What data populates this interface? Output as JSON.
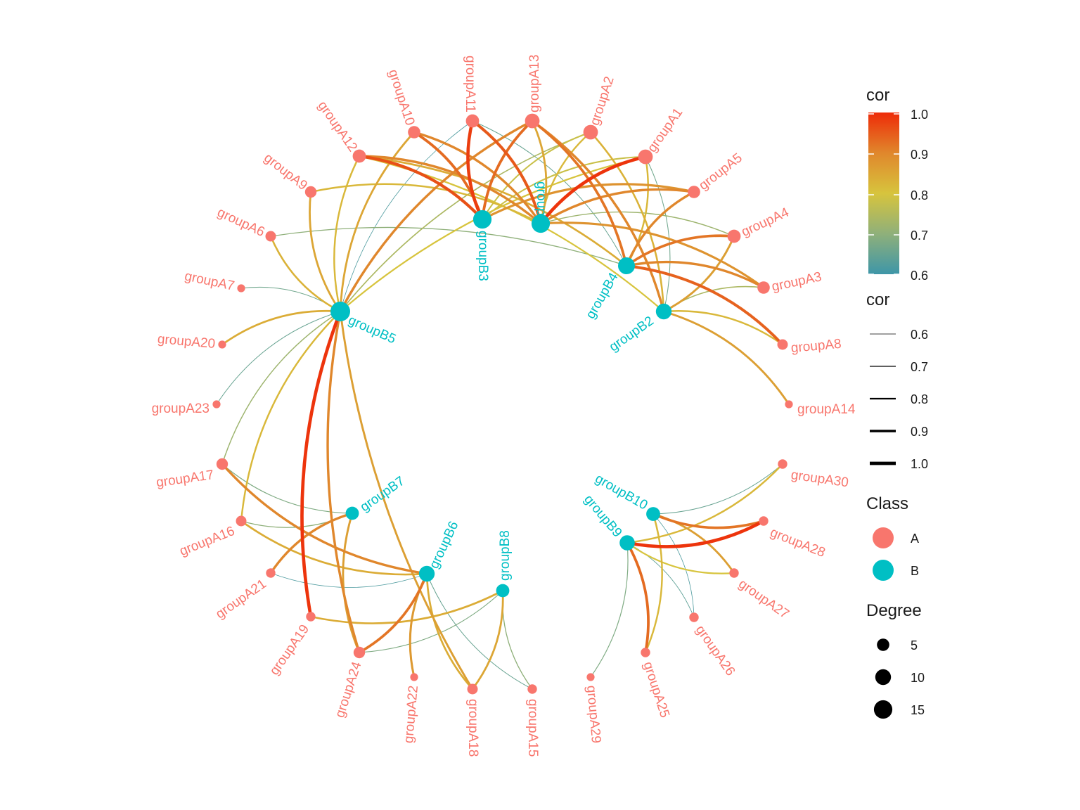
{
  "colors": {
    "classA": "#F8766D",
    "classB": "#00BFC4",
    "gradient": [
      "#3E96A8",
      "#8FB07A",
      "#D7C43D",
      "#E0872C",
      "#EE2B08"
    ]
  },
  "nodes": [
    {
      "id": "groupB1",
      "label": "groupB1",
      "class": "B",
      "degree": 15
    },
    {
      "id": "groupB2",
      "label": "groupB2",
      "class": "B",
      "degree": 10
    },
    {
      "id": "groupB3",
      "label": "groupB3",
      "class": "B",
      "degree": 15
    },
    {
      "id": "groupB4",
      "label": "groupB4",
      "class": "B",
      "degree": 12
    },
    {
      "id": "groupB5",
      "label": "groupB5",
      "class": "B",
      "degree": 18
    },
    {
      "id": "groupB6",
      "label": "groupB6",
      "class": "B",
      "degree": 10
    },
    {
      "id": "groupB7",
      "label": "groupB7",
      "class": "B",
      "degree": 6
    },
    {
      "id": "groupB8",
      "label": "groupB8",
      "class": "B",
      "degree": 6
    },
    {
      "id": "groupB9",
      "label": "groupB9",
      "class": "B",
      "degree": 9
    },
    {
      "id": "groupB10",
      "label": "groupB10",
      "class": "B",
      "degree": 7
    },
    {
      "id": "groupA1",
      "label": "groupA1",
      "class": "A",
      "degree": 8
    },
    {
      "id": "groupA2",
      "label": "groupA2",
      "class": "A",
      "degree": 8
    },
    {
      "id": "groupA3",
      "label": "groupA3",
      "class": "A",
      "degree": 5
    },
    {
      "id": "groupA4",
      "label": "groupA4",
      "class": "A",
      "degree": 6
    },
    {
      "id": "groupA5",
      "label": "groupA5",
      "class": "A",
      "degree": 5
    },
    {
      "id": "groupA6",
      "label": "groupA6",
      "class": "A",
      "degree": 3
    },
    {
      "id": "groupA7",
      "label": "groupA7",
      "class": "A",
      "degree": 1
    },
    {
      "id": "groupA8",
      "label": "groupA8",
      "class": "A",
      "degree": 3
    },
    {
      "id": "groupA9",
      "label": "groupA9",
      "class": "A",
      "degree": 4
    },
    {
      "id": "groupA10",
      "label": "groupA10",
      "class": "A",
      "degree": 5
    },
    {
      "id": "groupA11",
      "label": "groupA11",
      "class": "A",
      "degree": 6
    },
    {
      "id": "groupA12",
      "label": "groupA12",
      "class": "A",
      "degree": 6
    },
    {
      "id": "groupA13",
      "label": "groupA13",
      "class": "A",
      "degree": 8
    },
    {
      "id": "groupA14",
      "label": "groupA14",
      "class": "A",
      "degree": 1
    },
    {
      "id": "groupA15",
      "label": "groupA15",
      "class": "A",
      "degree": 2
    },
    {
      "id": "groupA16",
      "label": "groupA16",
      "class": "A",
      "degree": 3
    },
    {
      "id": "groupA17",
      "label": "groupA17",
      "class": "A",
      "degree": 4
    },
    {
      "id": "groupA18",
      "label": "groupA18",
      "class": "A",
      "degree": 3
    },
    {
      "id": "groupA19",
      "label": "groupA19",
      "class": "A",
      "degree": 2
    },
    {
      "id": "groupA20",
      "label": "groupA20",
      "class": "A",
      "degree": 1
    },
    {
      "id": "groupA21",
      "label": "groupA21",
      "class": "A",
      "degree": 2
    },
    {
      "id": "groupA22",
      "label": "groupA22",
      "class": "A",
      "degree": 1
    },
    {
      "id": "groupA23",
      "label": "groupA23",
      "class": "A",
      "degree": 1
    },
    {
      "id": "groupA24",
      "label": "groupA24",
      "class": "A",
      "degree": 4
    },
    {
      "id": "groupA25",
      "label": "groupA25",
      "class": "A",
      "degree": 2
    },
    {
      "id": "groupA26",
      "label": "groupA26",
      "class": "A",
      "degree": 2
    },
    {
      "id": "groupA27",
      "label": "groupA27",
      "class": "A",
      "degree": 2
    },
    {
      "id": "groupA28",
      "label": "groupA28",
      "class": "A",
      "degree": 2
    },
    {
      "id": "groupA29",
      "label": "groupA29",
      "class": "A",
      "degree": 1
    },
    {
      "id": "groupA30",
      "label": "groupA30",
      "class": "A",
      "degree": 2
    }
  ],
  "edges": [
    {
      "from": "groupA13",
      "to": "groupB3",
      "cor": 0.93
    },
    {
      "from": "groupA13",
      "to": "groupB1",
      "cor": 0.85
    },
    {
      "from": "groupA13",
      "to": "groupB4",
      "cor": 0.92
    },
    {
      "from": "groupA13",
      "to": "groupB2",
      "cor": 0.9
    },
    {
      "from": "groupA13",
      "to": "groupB5",
      "cor": 0.9
    },
    {
      "from": "groupA11",
      "to": "groupB3",
      "cor": 0.98
    },
    {
      "from": "groupA11",
      "to": "groupB1",
      "cor": 0.95
    },
    {
      "from": "groupA11",
      "to": "groupB5",
      "cor": 0.62
    },
    {
      "from": "groupA11",
      "to": "groupB4",
      "cor": 0.65
    },
    {
      "from": "groupA10",
      "to": "groupB3",
      "cor": 0.93
    },
    {
      "from": "groupA10",
      "to": "groupB1",
      "cor": 0.9
    },
    {
      "from": "groupA10",
      "to": "groupB5",
      "cor": 0.85
    },
    {
      "from": "groupA12",
      "to": "groupB3",
      "cor": 0.96
    },
    {
      "from": "groupA12",
      "to": "groupB1",
      "cor": 0.9
    },
    {
      "from": "groupA12",
      "to": "groupB5",
      "cor": 0.82
    },
    {
      "from": "groupA12",
      "to": "groupB4",
      "cor": 0.84
    },
    {
      "from": "groupA12",
      "to": "groupB2",
      "cor": 0.8
    },
    {
      "from": "groupA2",
      "to": "groupB3",
      "cor": 0.78
    },
    {
      "from": "groupA2",
      "to": "groupB1",
      "cor": 0.82
    },
    {
      "from": "groupA2",
      "to": "groupB5",
      "cor": 0.74
    },
    {
      "from": "groupA2",
      "to": "groupB2",
      "cor": 0.83
    },
    {
      "from": "groupA1",
      "to": "groupB1",
      "cor": 0.99
    },
    {
      "from": "groupA1",
      "to": "groupB3",
      "cor": 0.78
    },
    {
      "from": "groupA1",
      "to": "groupB5",
      "cor": 0.8
    },
    {
      "from": "groupA1",
      "to": "groupB4",
      "cor": 0.82
    },
    {
      "from": "groupA1",
      "to": "groupB2",
      "cor": 0.66
    },
    {
      "from": "groupA5",
      "to": "groupB1",
      "cor": 0.9
    },
    {
      "from": "groupA5",
      "to": "groupB3",
      "cor": 0.88
    },
    {
      "from": "groupA5",
      "to": "groupB4",
      "cor": 0.9
    },
    {
      "from": "groupA4",
      "to": "groupB4",
      "cor": 0.92
    },
    {
      "from": "groupA4",
      "to": "groupB1",
      "cor": 0.72
    },
    {
      "from": "groupA4",
      "to": "groupB2",
      "cor": 0.86
    },
    {
      "from": "groupA3",
      "to": "groupB4",
      "cor": 0.9
    },
    {
      "from": "groupA3",
      "to": "groupB1",
      "cor": 0.88
    },
    {
      "from": "groupA3",
      "to": "groupB2",
      "cor": 0.74
    },
    {
      "from": "groupA8",
      "to": "groupB4",
      "cor": 0.94
    },
    {
      "from": "groupA8",
      "to": "groupB2",
      "cor": 0.82
    },
    {
      "from": "groupA14",
      "to": "groupB2",
      "cor": 0.86
    },
    {
      "from": "groupA9",
      "to": "groupB5",
      "cor": 0.85
    },
    {
      "from": "groupA9",
      "to": "groupB1",
      "cor": 0.82
    },
    {
      "from": "groupA6",
      "to": "groupB5",
      "cor": 0.83
    },
    {
      "from": "groupA6",
      "to": "groupB4",
      "cor": 0.7
    },
    {
      "from": "groupA7",
      "to": "groupB5",
      "cor": 0.66
    },
    {
      "from": "groupA20",
      "to": "groupB5",
      "cor": 0.84
    },
    {
      "from": "groupA23",
      "to": "groupB5",
      "cor": 0.65
    },
    {
      "from": "groupA17",
      "to": "groupB5",
      "cor": 0.72
    },
    {
      "from": "groupA17",
      "to": "groupB7",
      "cor": 0.68
    },
    {
      "from": "groupA17",
      "to": "groupB6",
      "cor": 0.9
    },
    {
      "from": "groupA16",
      "to": "groupB5",
      "cor": 0.82
    },
    {
      "from": "groupA16",
      "to": "groupB7",
      "cor": 0.7
    },
    {
      "from": "groupA16",
      "to": "groupB6",
      "cor": 0.84
    },
    {
      "from": "groupA21",
      "to": "groupB7",
      "cor": 0.9
    },
    {
      "from": "groupA21",
      "to": "groupB6",
      "cor": 0.62
    },
    {
      "from": "groupA19",
      "to": "groupB5",
      "cor": 0.99
    },
    {
      "from": "groupA19",
      "to": "groupB8",
      "cor": 0.84
    },
    {
      "from": "groupA24",
      "to": "groupB5",
      "cor": 0.9
    },
    {
      "from": "groupA24",
      "to": "groupB6",
      "cor": 0.92
    },
    {
      "from": "groupA24",
      "to": "groupB8",
      "cor": 0.68
    },
    {
      "from": "groupA24",
      "to": "groupB7",
      "cor": 0.86
    },
    {
      "from": "groupA22",
      "to": "groupB6",
      "cor": 0.87
    },
    {
      "from": "groupA18",
      "to": "groupB6",
      "cor": 0.84
    },
    {
      "from": "groupA18",
      "to": "groupB8",
      "cor": 0.85
    },
    {
      "from": "groupA18",
      "to": "groupB5",
      "cor": 0.86
    },
    {
      "from": "groupA15",
      "to": "groupB6",
      "cor": 0.65
    },
    {
      "from": "groupA15",
      "to": "groupB8",
      "cor": 0.7
    },
    {
      "from": "groupA29",
      "to": "groupB9",
      "cor": 0.68
    },
    {
      "from": "groupA25",
      "to": "groupB9",
      "cor": 0.93
    },
    {
      "from": "groupA25",
      "to": "groupB10",
      "cor": 0.82
    },
    {
      "from": "groupA26",
      "to": "groupB9",
      "cor": 0.64
    },
    {
      "from": "groupA26",
      "to": "groupB10",
      "cor": 0.62
    },
    {
      "from": "groupA27",
      "to": "groupB9",
      "cor": 0.8
    },
    {
      "from": "groupA27",
      "to": "groupB10",
      "cor": 0.86
    },
    {
      "from": "groupA28",
      "to": "groupB9",
      "cor": 0.99
    },
    {
      "from": "groupA28",
      "to": "groupB10",
      "cor": 0.92
    },
    {
      "from": "groupA30",
      "to": "groupB10",
      "cor": 0.65
    },
    {
      "from": "groupA30",
      "to": "groupB9",
      "cor": 0.82
    }
  ],
  "legend": {
    "color_title": "cor",
    "color_ticks": [
      "1.0",
      "0.9",
      "0.8",
      "0.7",
      "0.6"
    ],
    "width_title": "cor",
    "width_items": [
      {
        "label": "0.6",
        "cor": 0.6
      },
      {
        "label": "0.7",
        "cor": 0.7
      },
      {
        "label": "0.8",
        "cor": 0.8
      },
      {
        "label": "0.9",
        "cor": 0.9
      },
      {
        "label": "1.0",
        "cor": 1.0
      }
    ],
    "class_title": "Class",
    "class_items": [
      {
        "label": "A",
        "class": "A"
      },
      {
        "label": "B",
        "class": "B"
      }
    ],
    "degree_title": "Degree",
    "degree_items": [
      {
        "label": "5",
        "degree": 5
      },
      {
        "label": "10",
        "degree": 10
      },
      {
        "label": "15",
        "degree": 15
      }
    ]
  }
}
